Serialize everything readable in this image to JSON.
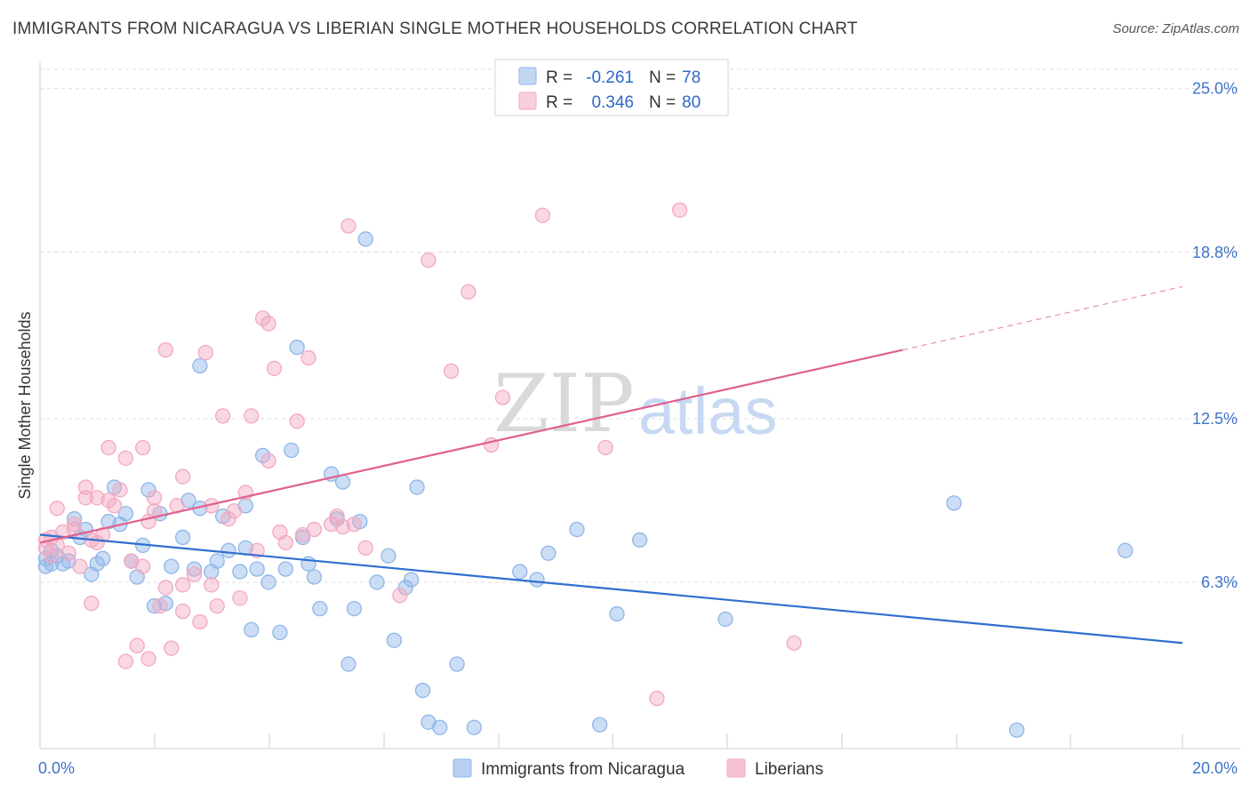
{
  "title": "IMMIGRANTS FROM NICARAGUA VS LIBERIAN SINGLE MOTHER HOUSEHOLDS CORRELATION CHART",
  "source": "Source: ZipAtlas.com",
  "watermark": "ZIPatlas",
  "chart_data": {
    "type": "scatter",
    "ylabel": "Single Mother Households",
    "xlim": [
      0,
      20
    ],
    "ylim": [
      0,
      26.0
    ],
    "x_tick_labels": [
      "0.0%",
      "20.0%"
    ],
    "y_ticks": [
      6.3,
      12.5,
      18.8,
      25.0
    ],
    "y_tick_labels": [
      "6.3%",
      "12.5%",
      "18.8%",
      "25.0%"
    ],
    "grid": "horizontal dashed",
    "legend": {
      "placement": "top-center",
      "entries": [
        {
          "r_label": "R =",
          "r_value": "-0.261",
          "n_label": "N =",
          "n_value": "78"
        },
        {
          "r_label": "R =",
          "r_value": "0.346",
          "n_label": "N =",
          "n_value": "80"
        }
      ]
    },
    "series": [
      {
        "name": "Immigrants from Nicaragua",
        "color": "#8fb5e8",
        "trend_color": "#2f6fd0",
        "trend": {
          "x": [
            0,
            20
          ],
          "y": [
            8.1,
            4.0
          ]
        },
        "points": [
          [
            0.1,
            7.2
          ],
          [
            0.2,
            7.0
          ],
          [
            0.3,
            7.3
          ],
          [
            0.2,
            7.5
          ],
          [
            0.4,
            7.0
          ],
          [
            0.5,
            7.1
          ],
          [
            0.6,
            8.7
          ],
          [
            0.7,
            8.0
          ],
          [
            0.8,
            8.3
          ],
          [
            0.9,
            6.6
          ],
          [
            1.0,
            7.0
          ],
          [
            1.1,
            7.2
          ],
          [
            1.2,
            8.6
          ],
          [
            1.3,
            9.9
          ],
          [
            1.4,
            8.5
          ],
          [
            1.5,
            8.9
          ],
          [
            1.6,
            7.1
          ],
          [
            1.7,
            6.5
          ],
          [
            1.8,
            7.7
          ],
          [
            1.9,
            9.8
          ],
          [
            2.0,
            5.4
          ],
          [
            2.1,
            8.9
          ],
          [
            2.2,
            5.5
          ],
          [
            2.3,
            6.9
          ],
          [
            2.5,
            8.0
          ],
          [
            2.6,
            9.4
          ],
          [
            2.7,
            6.8
          ],
          [
            2.8,
            9.1
          ],
          [
            2.8,
            14.5
          ],
          [
            3.0,
            6.7
          ],
          [
            3.1,
            7.1
          ],
          [
            3.2,
            8.8
          ],
          [
            3.3,
            7.5
          ],
          [
            3.5,
            6.7
          ],
          [
            3.6,
            9.2
          ],
          [
            3.6,
            7.6
          ],
          [
            3.7,
            4.5
          ],
          [
            3.8,
            6.8
          ],
          [
            3.9,
            11.1
          ],
          [
            4.0,
            6.3
          ],
          [
            4.2,
            4.4
          ],
          [
            4.3,
            6.8
          ],
          [
            4.4,
            11.3
          ],
          [
            4.5,
            15.2
          ],
          [
            4.6,
            8.0
          ],
          [
            4.7,
            7.0
          ],
          [
            4.8,
            6.5
          ],
          [
            4.9,
            5.3
          ],
          [
            5.1,
            10.4
          ],
          [
            5.2,
            8.7
          ],
          [
            5.3,
            10.1
          ],
          [
            5.4,
            3.2
          ],
          [
            5.5,
            5.3
          ],
          [
            5.6,
            8.6
          ],
          [
            5.7,
            19.3
          ],
          [
            5.9,
            6.3
          ],
          [
            6.1,
            7.3
          ],
          [
            6.2,
            4.1
          ],
          [
            6.4,
            6.1
          ],
          [
            6.5,
            6.4
          ],
          [
            6.6,
            9.9
          ],
          [
            6.7,
            2.2
          ],
          [
            6.8,
            1.0
          ],
          [
            7.0,
            0.8
          ],
          [
            7.3,
            3.2
          ],
          [
            7.6,
            0.8
          ],
          [
            8.4,
            6.7
          ],
          [
            8.7,
            6.4
          ],
          [
            8.9,
            7.4
          ],
          [
            9.4,
            8.3
          ],
          [
            9.8,
            0.9
          ],
          [
            10.1,
            5.1
          ],
          [
            10.5,
            7.9
          ],
          [
            12.0,
            4.9
          ],
          [
            16.0,
            9.3
          ],
          [
            17.1,
            0.7
          ],
          [
            19.0,
            7.5
          ],
          [
            0.1,
            6.9
          ]
        ]
      },
      {
        "name": "Liberians",
        "color": "#f2a8c2",
        "trend_color": "#e0608c",
        "trend": {
          "x": [
            0,
            15.1
          ],
          "y": [
            7.8,
            15.1
          ]
        },
        "trend_dashed": {
          "x": [
            15.1,
            20
          ],
          "y": [
            15.1,
            17.5
          ]
        },
        "points": [
          [
            0.1,
            7.6
          ],
          [
            0.2,
            8.0
          ],
          [
            0.3,
            7.7
          ],
          [
            0.3,
            9.1
          ],
          [
            0.4,
            8.2
          ],
          [
            0.5,
            7.4
          ],
          [
            0.6,
            8.3
          ],
          [
            0.7,
            6.9
          ],
          [
            0.8,
            9.9
          ],
          [
            0.8,
            9.5
          ],
          [
            0.9,
            7.9
          ],
          [
            0.9,
            5.5
          ],
          [
            1.0,
            9.5
          ],
          [
            1.1,
            8.1
          ],
          [
            1.2,
            9.4
          ],
          [
            1.2,
            11.4
          ],
          [
            1.3,
            9.2
          ],
          [
            1.4,
            9.8
          ],
          [
            1.5,
            11.0
          ],
          [
            1.5,
            3.3
          ],
          [
            1.6,
            7.1
          ],
          [
            1.7,
            3.9
          ],
          [
            1.8,
            6.9
          ],
          [
            1.8,
            11.4
          ],
          [
            1.9,
            8.6
          ],
          [
            1.9,
            3.4
          ],
          [
            2.0,
            9.5
          ],
          [
            2.1,
            5.4
          ],
          [
            2.2,
            6.1
          ],
          [
            2.2,
            15.1
          ],
          [
            2.3,
            3.8
          ],
          [
            2.4,
            9.2
          ],
          [
            2.5,
            5.2
          ],
          [
            2.5,
            6.2
          ],
          [
            2.5,
            10.3
          ],
          [
            2.7,
            6.6
          ],
          [
            2.8,
            4.8
          ],
          [
            2.9,
            15.0
          ],
          [
            3.0,
            9.2
          ],
          [
            3.0,
            6.2
          ],
          [
            3.1,
            5.4
          ],
          [
            3.2,
            12.6
          ],
          [
            3.3,
            8.7
          ],
          [
            3.5,
            5.7
          ],
          [
            3.6,
            9.7
          ],
          [
            3.7,
            12.6
          ],
          [
            3.8,
            7.5
          ],
          [
            3.9,
            16.3
          ],
          [
            4.0,
            16.1
          ],
          [
            4.0,
            10.9
          ],
          [
            4.1,
            14.4
          ],
          [
            4.2,
            8.2
          ],
          [
            4.3,
            7.8
          ],
          [
            4.5,
            12.4
          ],
          [
            4.6,
            8.1
          ],
          [
            4.7,
            14.8
          ],
          [
            5.1,
            8.5
          ],
          [
            5.2,
            8.8
          ],
          [
            5.3,
            8.4
          ],
          [
            5.4,
            19.8
          ],
          [
            5.5,
            8.5
          ],
          [
            5.7,
            7.6
          ],
          [
            6.3,
            5.8
          ],
          [
            6.8,
            18.5
          ],
          [
            7.2,
            14.3
          ],
          [
            7.5,
            17.3
          ],
          [
            7.9,
            11.5
          ],
          [
            8.1,
            13.3
          ],
          [
            8.8,
            20.2
          ],
          [
            9.9,
            11.4
          ],
          [
            10.8,
            1.9
          ],
          [
            11.2,
            20.4
          ],
          [
            13.2,
            4.0
          ],
          [
            0.1,
            7.9
          ],
          [
            0.2,
            7.3
          ],
          [
            0.6,
            8.5
          ],
          [
            1.0,
            7.8
          ],
          [
            2.0,
            9.0
          ],
          [
            3.4,
            9.0
          ],
          [
            4.8,
            8.3
          ]
        ]
      }
    ]
  },
  "bottom_legend": [
    {
      "label": "Immigrants from Nicaragua",
      "color": "#b8cff0"
    },
    {
      "label": "Liberians",
      "color": "#f7c3d4"
    }
  ]
}
